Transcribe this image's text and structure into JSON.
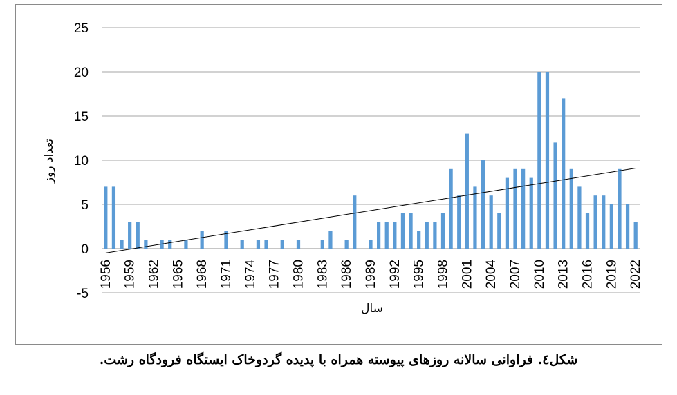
{
  "chart_data": {
    "type": "bar",
    "x": [
      1956,
      1957,
      1958,
      1959,
      1960,
      1961,
      1962,
      1963,
      1964,
      1965,
      1966,
      1967,
      1968,
      1969,
      1970,
      1971,
      1972,
      1973,
      1974,
      1975,
      1976,
      1977,
      1978,
      1979,
      1980,
      1981,
      1982,
      1983,
      1984,
      1985,
      1986,
      1987,
      1988,
      1989,
      1990,
      1991,
      1992,
      1993,
      1994,
      1995,
      1996,
      1997,
      1998,
      1999,
      2000,
      2001,
      2002,
      2003,
      2004,
      2005,
      2006,
      2007,
      2008,
      2009,
      2010,
      2011,
      2012,
      2013,
      2014,
      2015,
      2016,
      2017,
      2018,
      2019,
      2020,
      2021,
      2022
    ],
    "values": [
      7,
      7,
      1,
      3,
      3,
      1,
      0,
      1,
      1,
      0,
      1,
      0,
      2,
      0,
      0,
      2,
      0,
      1,
      0,
      1,
      1,
      0,
      1,
      0,
      1,
      0,
      0,
      1,
      2,
      0,
      1,
      6,
      0,
      1,
      3,
      3,
      3,
      4,
      4,
      2,
      3,
      3,
      4,
      9,
      6,
      13,
      7,
      10,
      6,
      4,
      8,
      9,
      9,
      8,
      20,
      20,
      12,
      17,
      9,
      7,
      4,
      6,
      6,
      5,
      9,
      5,
      3
    ],
    "tick_labels": [
      "1956",
      "1959",
      "1962",
      "1965",
      "1968",
      "1971",
      "1974",
      "1977",
      "1980",
      "1983",
      "1986",
      "1989",
      "1992",
      "1995",
      "1998",
      "2001",
      "2004",
      "2007",
      "2010",
      "2013",
      "2016",
      "2019",
      "2022"
    ],
    "y_ticks": [
      "-5",
      "0",
      "5",
      "10",
      "15",
      "20",
      "25"
    ],
    "ylim": [
      -5,
      25
    ],
    "xlabel": "سال",
    "ylabel": "تعداد روز",
    "trendline": {
      "start": [
        1956,
        -0.5
      ],
      "end": [
        2022,
        9.1
      ]
    },
    "grid": true,
    "colors": {
      "bar": "#5b9bd5",
      "trend": "#000000",
      "grid": "#a6a6a6"
    }
  },
  "caption": "شکل٤. فراوانی سالانه روزهای پیوسته همراه با پدیده گردوخاک ایستگاه فرودگاه رشت."
}
